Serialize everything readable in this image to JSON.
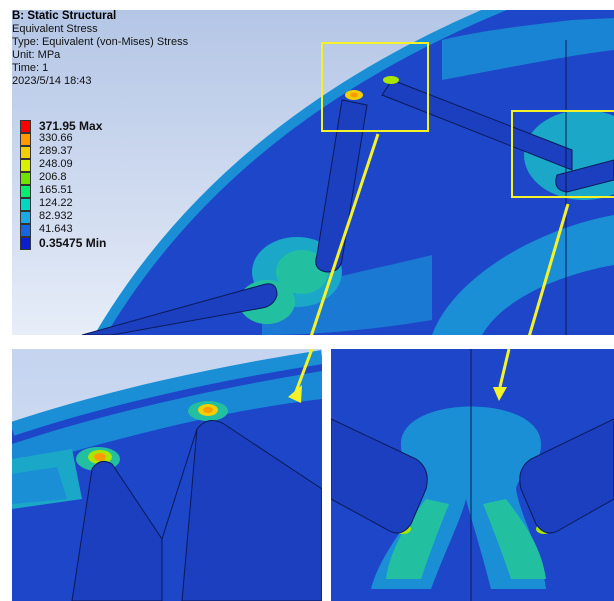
{
  "legend": {
    "analysis": "B: Static Structural",
    "result": "Equivalent Stress",
    "type": "Type: Equivalent (von-Mises) Stress",
    "unit": "Unit: MPa",
    "time": "Time: 1",
    "date": "2023/5/14 18:43"
  },
  "scale": {
    "max_label": "371.95 Max",
    "min_label": "0.35475 Min",
    "levels": [
      "330.66",
      "289.37",
      "248.09",
      "206.8",
      "165.51",
      "124.22",
      "82.932",
      "41.643"
    ],
    "colors": [
      "#ff0000",
      "#ff9a00",
      "#f2cf00",
      "#d6f200",
      "#6fe400",
      "#00ee70",
      "#00d8c3",
      "#18a9e6",
      "#1766e0",
      "#0a1fd0"
    ]
  },
  "colors": {
    "highlight_box": "#f4f32a",
    "stress_low": "#1d47c8",
    "stress_mid": "#19a0d9",
    "stress_midhigh": "#22b9a0"
  },
  "views": {
    "zoom_left": "slot-tip-detail",
    "zoom_right": "tooth-root-detail"
  }
}
